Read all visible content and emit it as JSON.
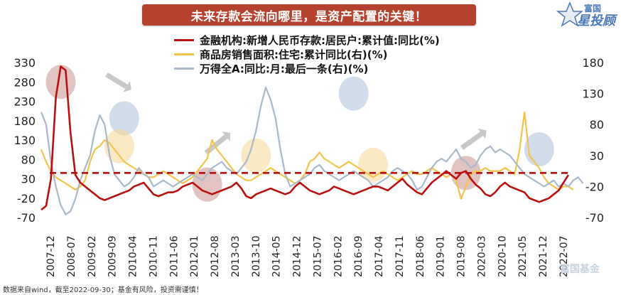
{
  "header": {
    "title": "未来存款会流向哪里，是资产配置的关键！"
  },
  "logo": {
    "brand_top": "富国",
    "brand_main": "星投顾"
  },
  "footnote": "数据来自wind，截至2022-09-30；基金有风险，投资需谨慎！",
  "watermark": "富国基金",
  "question_mark": "?",
  "chart_data": {
    "type": "line",
    "x_ticks": [
      "2007-12",
      "2008-07",
      "2009-02",
      "2009-09",
      "2010-04",
      "2010-11",
      "2011-06",
      "2012-01",
      "2012-08",
      "2013-03",
      "2013-10",
      "2014-05",
      "2014-12",
      "2015-07",
      "2016-02",
      "2016-09",
      "2017-04",
      "2017-11",
      "2018-06",
      "2019-01",
      "2019-08",
      "2020-03",
      "2020-10",
      "2021-05",
      "2021-12",
      "2022-07"
    ],
    "y_left": {
      "ticks": [
        330,
        280,
        230,
        180,
        130,
        80,
        30,
        -20,
        -70
      ],
      "range": [
        -70,
        330
      ]
    },
    "y_right": {
      "ticks": [
        180,
        130,
        80,
        30,
        -20,
        -70
      ],
      "range": [
        -70,
        180
      ]
    },
    "reference_line": {
      "axis": "left",
      "value": 45,
      "color": "#b80f0f",
      "style": "dashed"
    },
    "series": [
      {
        "name": "金融机构:新增人民币存款:居民户:累计值:同比(%)",
        "axis": "left",
        "color": "#b80f0f",
        "values": [
          -50,
          -40,
          30,
          240,
          320,
          310,
          150,
          40,
          20,
          10,
          0,
          -10,
          -20,
          -25,
          -20,
          -15,
          -10,
          -5,
          0,
          10,
          15,
          20,
          5,
          -10,
          -15,
          -10,
          -5,
          -5,
          0,
          10,
          15,
          20,
          10,
          0,
          -5,
          -10,
          -5,
          0,
          5,
          10,
          20,
          5,
          -15,
          -20,
          -10,
          -5,
          0,
          5,
          0,
          -5,
          -10,
          -5,
          10,
          20,
          10,
          0,
          -5,
          -10,
          -5,
          0,
          10,
          5,
          0,
          -5,
          -10,
          -5,
          0,
          5,
          10,
          10,
          5,
          0,
          10,
          20,
          30,
          15,
          5,
          -5,
          -10,
          5,
          20,
          30,
          40,
          50,
          40,
          30,
          45,
          50,
          30,
          15,
          5,
          -10,
          -15,
          -5,
          10,
          20,
          10,
          5,
          0,
          -5,
          -20,
          -25,
          -30,
          -25,
          -20,
          -10,
          0,
          20,
          40
        ]
      },
      {
        "name": "商品房销售面积:住宅:累计同比(右)(%)",
        "axis": "right",
        "color": "#f5c34a",
        "values": [
          40,
          20,
          5,
          -5,
          -10,
          -15,
          -20,
          -25,
          -20,
          -10,
          20,
          40,
          45,
          55,
          50,
          40,
          30,
          20,
          15,
          10,
          5,
          0,
          -5,
          -5,
          0,
          5,
          0,
          -5,
          -10,
          -15,
          -10,
          -5,
          5,
          15,
          25,
          55,
          40,
          30,
          20,
          10,
          0,
          -5,
          -10,
          -10,
          -5,
          0,
          5,
          10,
          5,
          0,
          -5,
          -10,
          -15,
          -10,
          0,
          20,
          25,
          35,
          25,
          20,
          15,
          10,
          15,
          20,
          15,
          10,
          5,
          0,
          -5,
          0,
          5,
          0,
          -5,
          -10,
          -5,
          0,
          5,
          0,
          0,
          5,
          10,
          5,
          0,
          -5,
          0,
          -10,
          -40,
          -20,
          0,
          5,
          5,
          10,
          5,
          5,
          5,
          10,
          5,
          0,
          40,
          100,
          30,
          20,
          10,
          -5,
          -15,
          -20,
          -25,
          -20,
          -20,
          -25
        ]
      },
      {
        "name": "万得全A:同比:月:最后一条(右)(%)",
        "axis": "right",
        "color": "#a9b9ca",
        "values": [
          100,
          80,
          20,
          -20,
          -50,
          -65,
          -60,
          -40,
          -10,
          10,
          30,
          70,
          95,
          80,
          30,
          0,
          -10,
          -20,
          -15,
          -5,
          10,
          0,
          -5,
          -20,
          -15,
          -10,
          -15,
          -20,
          -15,
          -10,
          -5,
          0,
          -5,
          -10,
          0,
          10,
          15,
          20,
          10,
          5,
          0,
          10,
          20,
          40,
          70,
          110,
          140,
          120,
          90,
          40,
          0,
          -20,
          -15,
          -10,
          -5,
          0,
          10,
          15,
          5,
          0,
          -5,
          -10,
          -5,
          0,
          5,
          0,
          -5,
          -10,
          -20,
          -15,
          -10,
          -5,
          5,
          10,
          5,
          0,
          -10,
          -25,
          -20,
          -5,
          10,
          20,
          25,
          20,
          30,
          40,
          25,
          20,
          10,
          15,
          30,
          40,
          45,
          35,
          40,
          35,
          30,
          20,
          10,
          0,
          -5,
          -10,
          -15,
          -20,
          -15,
          -10,
          -20,
          -15,
          -20,
          -10,
          -5,
          -15
        ]
      }
    ],
    "annotations": [
      {
        "type": "circle",
        "at_index": 4,
        "axis": "left",
        "value": 280,
        "color": "#c9928e"
      },
      {
        "type": "circle",
        "at_index": 17,
        "axis": "right",
        "value": 90,
        "color": "#a9c0d9"
      },
      {
        "type": "circle",
        "at_index": 16,
        "axis": "right",
        "value": 45,
        "color": "#f7d792"
      },
      {
        "type": "circle",
        "at_index": 34,
        "axis": "left",
        "value": 15,
        "color": "#c9928e"
      },
      {
        "type": "circle",
        "at_index": 44,
        "axis": "right",
        "value": 30,
        "color": "#f7d792"
      },
      {
        "type": "circle",
        "at_index": 64,
        "axis": "right",
        "value": 130,
        "color": "#a9c0d9"
      },
      {
        "type": "circle",
        "at_index": 68,
        "axis": "right",
        "value": 15,
        "color": "#f7d792"
      },
      {
        "type": "circle",
        "at_index": 87,
        "axis": "left",
        "value": 45,
        "color": "#c9928e"
      },
      {
        "type": "circle",
        "at_index": 102,
        "axis": "right",
        "value": 40,
        "color": "#a9c0d9"
      },
      {
        "type": "circle",
        "at_index": 124,
        "axis": "left",
        "value": 40,
        "color": "#c9928e"
      }
    ],
    "grid": false,
    "legend_position": "top-center"
  }
}
